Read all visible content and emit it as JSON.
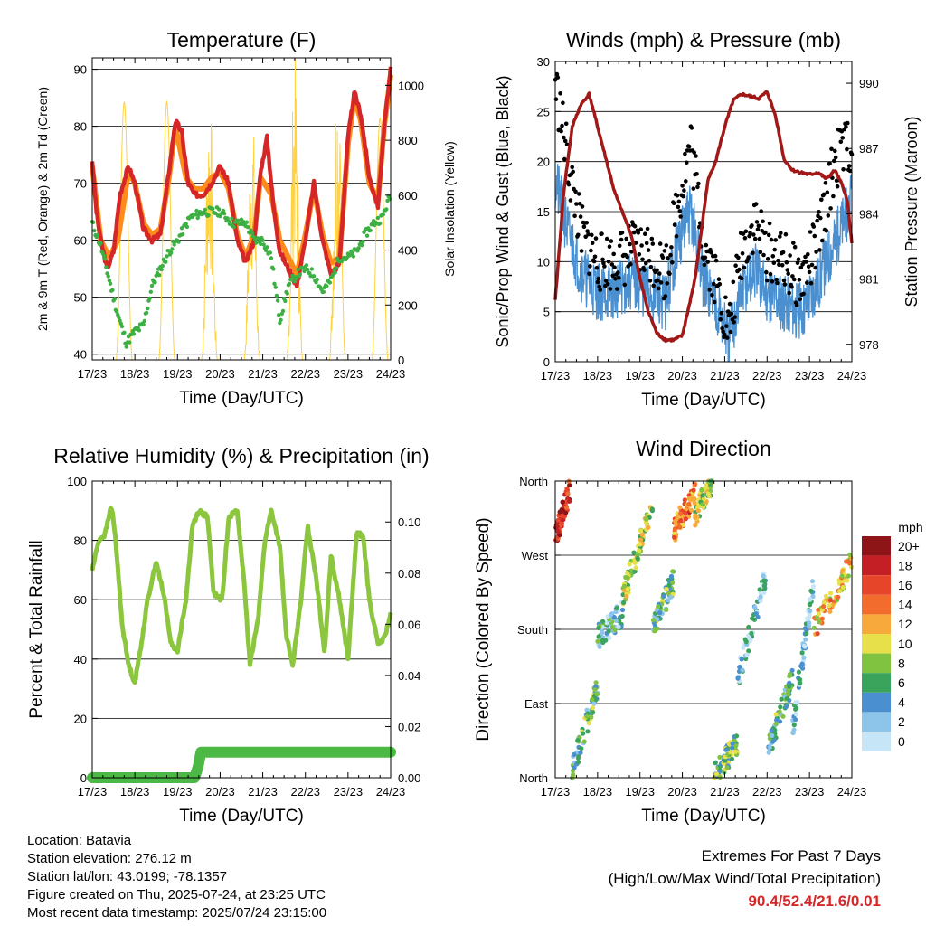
{
  "panels": {
    "temperature": {
      "title": "Temperature (F)",
      "ylabel_left": "2m & 9m T (Red, Orange) & 2m Td (Green)",
      "ylabel_right": "Solar Insolation (Yellow)",
      "xlabel": "Time (Day/UTC)"
    },
    "winds": {
      "title": "Winds (mph) & Pressure (mb)",
      "ylabel_left": "Sonic/Prop Wind & Gust (Blue, Black)",
      "ylabel_right": "Station Pressure (Maroon)",
      "xlabel": "Time (Day/UTC)"
    },
    "humidity": {
      "title": "Relative Humidity (%) & Precipitation (in)",
      "ylabel_left": "Percent & Total Rainfall",
      "xlabel": "Time (Day/UTC)"
    },
    "direction": {
      "title": "Wind Direction",
      "ylabel_left": "Direction (Colored By Speed)",
      "xlabel": "Time (Day/UTC)",
      "colorbar_label": "mph",
      "colorbar_ticks": [
        "20+",
        "18",
        "16",
        "14",
        "12",
        "10",
        "8",
        "6",
        "4",
        "2",
        "0"
      ]
    }
  },
  "x_ticks": [
    "17/23",
    "18/23",
    "19/23",
    "20/23",
    "21/23",
    "22/23",
    "23/23",
    "24/23"
  ],
  "info": {
    "location": "Location: Batavia",
    "elevation": "Station elevation: 276.12 m",
    "latlon": "Station lat/lon: 43.0199; -78.1357",
    "created": "Figure created on Thu, 2025-07-24, at 23:25 UTC",
    "recent": "Most recent data timestamp: 2025/07/24 23:15:00"
  },
  "extremes": {
    "line1": "Extremes For Past 7 Days",
    "line2": "(High/Low/Max Wind/Total Precipitation)",
    "values": "90.4/52.4/21.6/0.01"
  },
  "colors": {
    "temp2m": "#d62728",
    "temp9m": "#ff8c1a",
    "dewpoint": "#3cb043",
    "solar": "#ffd23f",
    "wind": "#4a90d0",
    "gust": "#000000",
    "pressure": "#a01818",
    "rh": "#8cc63f",
    "precip": "#4cb845"
  },
  "chart_data": [
    {
      "type": "line",
      "title": "Temperature (F)",
      "x_day_ticks": [
        17,
        18,
        19,
        20,
        21,
        22,
        23,
        24
      ],
      "ylim": [
        39,
        92
      ],
      "yticks": [
        40,
        50,
        60,
        70,
        80,
        90
      ],
      "y2lim": [
        0,
        1100
      ],
      "y2ticks": [
        0,
        200,
        400,
        600,
        800,
        1000
      ],
      "series": [
        {
          "name": "2m T",
          "x": [
            0,
            0.1,
            0.2,
            0.35,
            0.5,
            0.65,
            0.85,
            1.0,
            1.2,
            1.4,
            1.6,
            1.8,
            1.95,
            2.1,
            2.25,
            2.4,
            2.6,
            2.8,
            3.0,
            3.2,
            3.4,
            3.6,
            3.8,
            3.95,
            4.1,
            4.25,
            4.4,
            4.6,
            4.8,
            5.0,
            5.2,
            5.4,
            5.6,
            5.8,
            6.0,
            6.15,
            6.3,
            6.5,
            6.7,
            6.85,
            7.0
          ],
          "y": [
            74,
            65,
            60,
            55,
            58,
            68,
            73,
            70,
            62,
            60,
            61,
            72,
            81,
            79,
            70,
            68,
            68,
            70,
            73,
            70,
            60,
            56,
            60,
            72,
            78,
            66,
            58,
            55,
            52,
            60,
            70,
            60,
            54,
            56,
            78,
            86,
            82,
            71,
            66,
            80,
            90
          ]
        },
        {
          "name": "9m T",
          "x": [
            0,
            0.2,
            0.4,
            0.6,
            0.85,
            1.0,
            1.2,
            1.4,
            1.6,
            1.8,
            1.95,
            2.2,
            2.4,
            2.6,
            2.8,
            3.0,
            3.2,
            3.4,
            3.6,
            3.8,
            3.95,
            4.2,
            4.4,
            4.6,
            4.8,
            5.0,
            5.2,
            5.4,
            5.6,
            5.8,
            6.0,
            6.15,
            6.3,
            6.5,
            6.7,
            6.85,
            7.0
          ],
          "y": [
            73,
            60,
            57,
            60,
            72,
            70,
            63,
            61,
            62,
            71,
            80,
            71,
            69,
            69,
            71,
            72,
            69,
            61,
            57,
            61,
            71,
            68,
            60,
            57,
            54,
            61,
            69,
            61,
            56,
            57,
            77,
            85,
            81,
            70,
            67,
            80,
            89
          ]
        },
        {
          "name": "2m Td",
          "x": [
            0,
            0.2,
            0.4,
            0.6,
            0.8,
            1.0,
            1.2,
            1.4,
            1.6,
            1.8,
            2.0,
            2.3,
            2.6,
            2.8,
            3.0,
            3.3,
            3.6,
            3.8,
            4.0,
            4.2,
            4.4,
            4.6,
            4.8,
            5.0,
            5.2,
            5.4,
            5.6,
            5.8,
            6.0,
            6.2,
            6.4,
            6.6,
            6.8,
            7.0
          ],
          "y": [
            63,
            59,
            53,
            47,
            42,
            44,
            45,
            52,
            55,
            58,
            60,
            64,
            65,
            65,
            65,
            63,
            63,
            60,
            60,
            57,
            46,
            52,
            54,
            55,
            54,
            51,
            53,
            57,
            57,
            58,
            61,
            63,
            64,
            68
          ]
        },
        {
          "name": "Solar Insolation",
          "axis": "right",
          "peak_days": [
            0.75,
            1.75,
            2.75,
            3.75,
            4.75,
            5.75,
            6.75
          ],
          "peaks": [
            940,
            940,
            910,
            850,
            1010,
            1020,
            880
          ]
        }
      ]
    },
    {
      "type": "line",
      "title": "Winds (mph) & Pressure (mb)",
      "x_day_ticks": [
        17,
        18,
        19,
        20,
        21,
        22,
        23,
        24
      ],
      "ylim": [
        0,
        30
      ],
      "yticks": [
        0,
        5,
        10,
        15,
        20,
        25,
        30
      ],
      "y2lim": [
        977.2,
        991.0
      ],
      "y2ticks": [
        978,
        981,
        984,
        987,
        990
      ],
      "series": [
        {
          "name": "Wind",
          "x": [
            0,
            0.3,
            0.6,
            1.0,
            1.4,
            1.8,
            2.2,
            2.6,
            2.9,
            3.2,
            3.5,
            3.8,
            4.1,
            4.4,
            4.7,
            5.0,
            5.4,
            5.8,
            6.2,
            6.6,
            7.0
          ],
          "y": [
            18,
            13,
            9,
            7,
            7,
            8,
            7,
            6,
            12,
            15,
            8,
            6,
            2,
            7,
            9,
            7,
            6,
            5,
            8,
            12,
            16
          ]
        },
        {
          "name": "Gust",
          "x": [
            0,
            0.3,
            0.6,
            1.0,
            1.4,
            1.8,
            2.2,
            2.6,
            2.9,
            3.2,
            3.5,
            3.8,
            4.1,
            4.4,
            4.7,
            5.0,
            5.4,
            5.8,
            6.2,
            6.6,
            7.0
          ],
          "y": [
            28,
            20,
            13,
            10,
            10,
            11,
            11,
            9,
            16,
            22,
            12,
            8,
            3,
            11,
            14,
            11,
            10,
            8,
            12,
            20,
            22
          ]
        },
        {
          "name": "Station Pressure",
          "axis": "right",
          "x": [
            0,
            0.2,
            0.4,
            0.6,
            0.8,
            1.0,
            1.2,
            1.4,
            1.6,
            1.8,
            2.0,
            2.2,
            2.4,
            2.6,
            2.8,
            3.0,
            3.3,
            3.6,
            3.8,
            4.0,
            4.2,
            4.4,
            4.6,
            4.8,
            5.0,
            5.2,
            5.4,
            5.6,
            5.8,
            6.0,
            6.2,
            6.4,
            6.6,
            6.8,
            6.9,
            7.0
          ],
          "y": [
            980,
            985,
            988,
            989,
            989.5,
            988,
            986.5,
            985,
            984,
            983,
            981,
            979.5,
            978.5,
            978.2,
            978.2,
            978.4,
            981,
            985.5,
            986.5,
            988,
            989.2,
            989.5,
            989.4,
            989.3,
            989.6,
            988.5,
            986.5,
            986,
            985.9,
            985.8,
            985.9,
            985.6,
            986,
            985.2,
            984.5,
            982.6
          ]
        }
      ]
    },
    {
      "type": "line",
      "title": "Relative Humidity (%) & Precipitation (in)",
      "x_day_ticks": [
        17,
        18,
        19,
        20,
        21,
        22,
        23,
        24
      ],
      "ylim": [
        0,
        100
      ],
      "yticks": [
        0,
        20,
        40,
        60,
        80,
        100
      ],
      "y2lim": [
        0,
        0.116
      ],
      "y2ticks": [
        0.0,
        0.02,
        0.04,
        0.06,
        0.08,
        0.1
      ],
      "series": [
        {
          "name": "RH",
          "x": [
            0,
            0.15,
            0.3,
            0.45,
            0.55,
            0.7,
            0.85,
            1.0,
            1.15,
            1.3,
            1.5,
            1.7,
            1.85,
            2.0,
            2.2,
            2.35,
            2.5,
            2.7,
            2.85,
            3.05,
            3.2,
            3.4,
            3.55,
            3.7,
            3.9,
            4.05,
            4.2,
            4.4,
            4.55,
            4.7,
            4.9,
            5.05,
            5.25,
            5.45,
            5.6,
            5.8,
            6.0,
            6.2,
            6.35,
            6.5,
            6.7,
            6.85,
            7.0
          ],
          "y": [
            70,
            80,
            82,
            92,
            80,
            52,
            38,
            32,
            45,
            60,
            73,
            60,
            45,
            43,
            60,
            85,
            90,
            88,
            62,
            60,
            88,
            90,
            68,
            38,
            55,
            80,
            90,
            78,
            48,
            38,
            60,
            85,
            68,
            42,
            75,
            60,
            40,
            82,
            82,
            60,
            45,
            47,
            55
          ]
        },
        {
          "name": "Total Rainfall",
          "axis": "right",
          "x": [
            0,
            2.4,
            2.48,
            2.55,
            7.0
          ],
          "y": [
            0,
            0,
            0.004,
            0.01,
            0.01
          ]
        }
      ]
    },
    {
      "type": "scatter",
      "title": "Wind Direction",
      "x_day_ticks": [
        17,
        18,
        19,
        20,
        21,
        22,
        23,
        24
      ],
      "yticks": [
        "North",
        "East",
        "South",
        "West",
        "North"
      ],
      "ylim_deg": [
        0,
        360
      ],
      "color_scale_mph": [
        0,
        2,
        4,
        6,
        8,
        10,
        12,
        14,
        16,
        18,
        20
      ],
      "clusters": [
        {
          "x": [
            0,
            0.35
          ],
          "deg": [
            290,
            350
          ],
          "speed": 17
        },
        {
          "x": [
            0.4,
            1.0
          ],
          "deg": [
            10,
            110
          ],
          "speed": 6
        },
        {
          "x": [
            1.0,
            1.6
          ],
          "deg": [
            170,
            200
          ],
          "speed": 4
        },
        {
          "x": [
            1.6,
            2.3
          ],
          "deg": [
            220,
            330
          ],
          "speed": 9
        },
        {
          "x": [
            2.3,
            2.8
          ],
          "deg": [
            180,
            240
          ],
          "speed": 6
        },
        {
          "x": [
            2.8,
            3.3
          ],
          "deg": [
            300,
            345
          ],
          "speed": 14
        },
        {
          "x": [
            3.3,
            3.7
          ],
          "deg": [
            320,
            360
          ],
          "speed": 9
        },
        {
          "x": [
            3.7,
            4.3
          ],
          "deg": [
            0,
            40
          ],
          "speed": 7
        },
        {
          "x": [
            4.3,
            5.0
          ],
          "deg": [
            120,
            250
          ],
          "speed": 3
        },
        {
          "x": [
            5.0,
            5.6
          ],
          "deg": [
            30,
            120
          ],
          "speed": 6
        },
        {
          "x": [
            5.6,
            6.1
          ],
          "deg": [
            60,
            240
          ],
          "speed": 3
        },
        {
          "x": [
            6.1,
            7.0
          ],
          "deg": [
            180,
            260
          ],
          "speed": 12
        }
      ]
    }
  ]
}
